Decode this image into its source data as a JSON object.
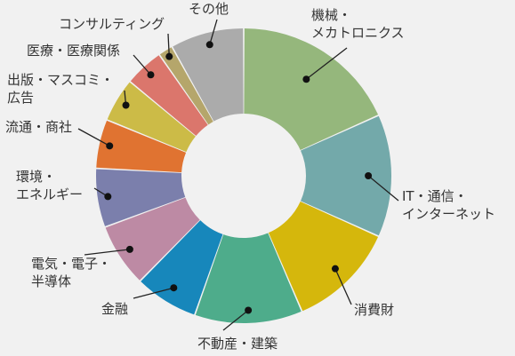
{
  "chart_data": {
    "type": "pie",
    "donut": true,
    "title": "",
    "unit": "%",
    "start_angle_deg": 0,
    "direction": "clockwise",
    "slices": [
      {
        "name": "機械・メカトロニクス",
        "label_lines": [
          "機械・",
          "メカトロニクス"
        ],
        "value": 17.0,
        "color": "#95b77c"
      },
      {
        "name": "IT・通信・インターネット",
        "label_lines": [
          "IT・通信・",
          "インターネット"
        ],
        "value": 12.5,
        "color": "#73a9aa"
      },
      {
        "name": "消費財",
        "label_lines": [
          "消費財"
        ],
        "value": 11.0,
        "color": "#d5b70c"
      },
      {
        "name": "不動産・建築",
        "label_lines": [
          "不動産・建築"
        ],
        "value": 11.0,
        "color": "#4eac8b"
      },
      {
        "name": "金融",
        "label_lines": [
          "金融"
        ],
        "value": 6.5,
        "color": "#1787bb"
      },
      {
        "name": "電気・電子・半導体",
        "label_lines": [
          "電気・電子・",
          "半導体"
        ],
        "value": 6.5,
        "color": "#bd8aa4"
      },
      {
        "name": "環境・エネルギー",
        "label_lines": [
          "環境・",
          "エネルギー"
        ],
        "value": 6.0,
        "color": "#7b7fac"
      },
      {
        "name": "流通・商社",
        "label_lines": [
          "流通・商社"
        ],
        "value": 5.0,
        "color": "#e07331"
      },
      {
        "name": "出版・マスコミ・広告",
        "label_lines": [
          "出版・マスコミ・",
          "広告"
        ],
        "value": 4.5,
        "color": "#ccbb47"
      },
      {
        "name": "医療・医療関係",
        "label_lines": [
          "医療・医療関係"
        ],
        "value": 4.0,
        "color": "#db766c"
      },
      {
        "name": "コンサルティング",
        "label_lines": [
          "コンサルティング"
        ],
        "value": 1.5,
        "color": "#b5a66b"
      },
      {
        "name": "その他",
        "label_lines": [
          "その他"
        ],
        "value": 7.5,
        "color": "#ababab"
      }
    ]
  }
}
